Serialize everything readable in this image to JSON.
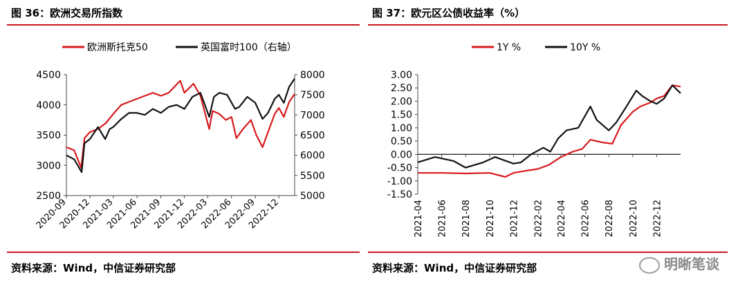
{
  "charts": [
    {
      "title": "图 36：欧洲交易所指数",
      "source": "资料来源：Wind，中信证券研究部",
      "legend": [
        {
          "name": "欧洲斯托克50",
          "color": "#d7191c"
        },
        {
          "name": "英国富时100（右轴）",
          "color": "#111111"
        }
      ]
    },
    {
      "title": "图 37：欧元区公债收益率（%）",
      "source": "资料来源：Wind，中信证券研究部",
      "legend": [
        {
          "name": "1Y %",
          "color": "#d7191c"
        },
        {
          "name": "10Y %",
          "color": "#111111"
        }
      ]
    }
  ],
  "watermark": "明晰笔谈",
  "watermark_icon": "wechat-icon",
  "chart_data": [
    {
      "type": "line",
      "x_ticks": [
        "2020-09",
        "2020-12",
        "2021-03",
        "2021-06",
        "2021-09",
        "2021-12",
        "2022-03",
        "2022-06",
        "2022-09",
        "2022-12"
      ],
      "x_start": "2020-09-01",
      "x_end": "2023-01-31",
      "y_left": {
        "ylim": [
          2500,
          4500
        ],
        "ticks": [
          "4500",
          "4000",
          "3500",
          "3000",
          "2500"
        ]
      },
      "y_right": {
        "ylim": [
          5000,
          8000
        ],
        "ticks": [
          "8000",
          "7500",
          "7000",
          "6500",
          "6000",
          "5500",
          "5000"
        ]
      },
      "series": [
        {
          "name": "欧洲斯托克50",
          "axis": "left",
          "color": "#d7191c",
          "x": [
            "2020-09-01",
            "2020-10-01",
            "2020-10-28",
            "2020-11-10",
            "2020-12-01",
            "2021-01-01",
            "2021-02-01",
            "2021-03-01",
            "2021-04-01",
            "2021-05-01",
            "2021-06-01",
            "2021-07-01",
            "2021-08-01",
            "2021-09-01",
            "2021-10-01",
            "2021-11-15",
            "2021-12-01",
            "2022-01-05",
            "2022-02-01",
            "2022-03-07",
            "2022-03-20",
            "2022-04-15",
            "2022-05-10",
            "2022-06-01",
            "2022-06-20",
            "2022-07-15",
            "2022-08-15",
            "2022-09-05",
            "2022-09-29",
            "2022-10-20",
            "2022-11-15",
            "2022-12-01",
            "2022-12-20",
            "2023-01-10",
            "2023-01-31"
          ],
          "y": [
            3300,
            3250,
            2960,
            3450,
            3550,
            3600,
            3700,
            3850,
            4000,
            4050,
            4100,
            4150,
            4200,
            4150,
            4200,
            4400,
            4200,
            4350,
            4150,
            3600,
            3900,
            3850,
            3750,
            3800,
            3450,
            3600,
            3750,
            3500,
            3300,
            3550,
            3850,
            3950,
            3800,
            4050,
            4180
          ]
        },
        {
          "name": "英国富时100（右轴）",
          "axis": "right",
          "color": "#111111",
          "x": [
            "2020-09-01",
            "2020-10-01",
            "2020-10-30",
            "2020-11-10",
            "2020-12-01",
            "2021-01-01",
            "2021-01-29",
            "2021-02-15",
            "2021-03-01",
            "2021-04-01",
            "2021-05-01",
            "2021-06-01",
            "2021-07-01",
            "2021-08-01",
            "2021-09-01",
            "2021-10-01",
            "2021-11-01",
            "2021-12-01",
            "2022-01-01",
            "2022-02-01",
            "2022-03-07",
            "2022-03-25",
            "2022-04-15",
            "2022-05-15",
            "2022-06-15",
            "2022-07-01",
            "2022-08-01",
            "2022-09-01",
            "2022-09-29",
            "2022-10-20",
            "2022-11-15",
            "2022-12-01",
            "2022-12-20",
            "2023-01-10",
            "2023-01-31"
          ],
          "y": [
            6000,
            5900,
            5580,
            6300,
            6400,
            6700,
            6400,
            6650,
            6700,
            6900,
            7050,
            7050,
            7000,
            7150,
            7050,
            7200,
            7250,
            7150,
            7450,
            7550,
            6950,
            7450,
            7550,
            7500,
            7150,
            7200,
            7450,
            7300,
            6900,
            7050,
            7400,
            7500,
            7300,
            7700,
            7900
          ]
        }
      ]
    },
    {
      "type": "line",
      "x_ticks": [
        "2021-04",
        "2021-06",
        "2021-08",
        "2021-10",
        "2021-12",
        "2022-02",
        "2022-04",
        "2022-06",
        "2022-08",
        "2022-10",
        "2022-12"
      ],
      "x_start": "2021-04-01",
      "x_end": "2023-01-31",
      "ylim": [
        -1.5,
        3.0
      ],
      "y_ticks": [
        "3.00",
        "2.50",
        "2.00",
        "1.50",
        "1.00",
        "0.50",
        "0.00",
        "-0.50",
        "-1.00",
        "-1.50"
      ],
      "series": [
        {
          "name": "1Y %",
          "color": "#d7191c",
          "x": [
            "2021-04-01",
            "2021-06-01",
            "2021-08-01",
            "2021-10-01",
            "2021-11-10",
            "2021-12-01",
            "2022-01-01",
            "2022-02-01",
            "2022-03-01",
            "2022-04-01",
            "2022-05-01",
            "2022-05-25",
            "2022-06-15",
            "2022-07-15",
            "2022-08-10",
            "2022-09-01",
            "2022-10-01",
            "2022-10-20",
            "2022-11-15",
            "2022-12-01",
            "2022-12-20",
            "2023-01-10",
            "2023-01-31"
          ],
          "y": [
            -0.7,
            -0.7,
            -0.72,
            -0.7,
            -0.85,
            -0.7,
            -0.62,
            -0.55,
            -0.4,
            -0.1,
            0.1,
            0.2,
            0.55,
            0.45,
            0.4,
            1.1,
            1.6,
            1.8,
            1.95,
            2.1,
            2.2,
            2.6,
            2.55
          ]
        },
        {
          "name": "10Y %",
          "color": "#111111",
          "x": [
            "2021-04-01",
            "2021-05-15",
            "2021-07-01",
            "2021-08-01",
            "2021-09-15",
            "2021-10-15",
            "2021-12-01",
            "2021-12-20",
            "2022-01-15",
            "2022-02-15",
            "2022-03-05",
            "2022-03-25",
            "2022-04-15",
            "2022-05-15",
            "2022-06-15",
            "2022-07-01",
            "2022-08-01",
            "2022-08-20",
            "2022-09-15",
            "2022-10-10",
            "2022-10-25",
            "2022-11-15",
            "2022-12-01",
            "2022-12-20",
            "2023-01-10",
            "2023-01-31"
          ],
          "y": [
            -0.3,
            -0.1,
            -0.25,
            -0.5,
            -0.3,
            -0.1,
            -0.35,
            -0.3,
            0.0,
            0.25,
            0.1,
            0.6,
            0.9,
            1.0,
            1.8,
            1.3,
            0.9,
            1.2,
            1.8,
            2.4,
            2.2,
            2.0,
            1.9,
            2.1,
            2.6,
            2.3
          ]
        }
      ]
    }
  ]
}
